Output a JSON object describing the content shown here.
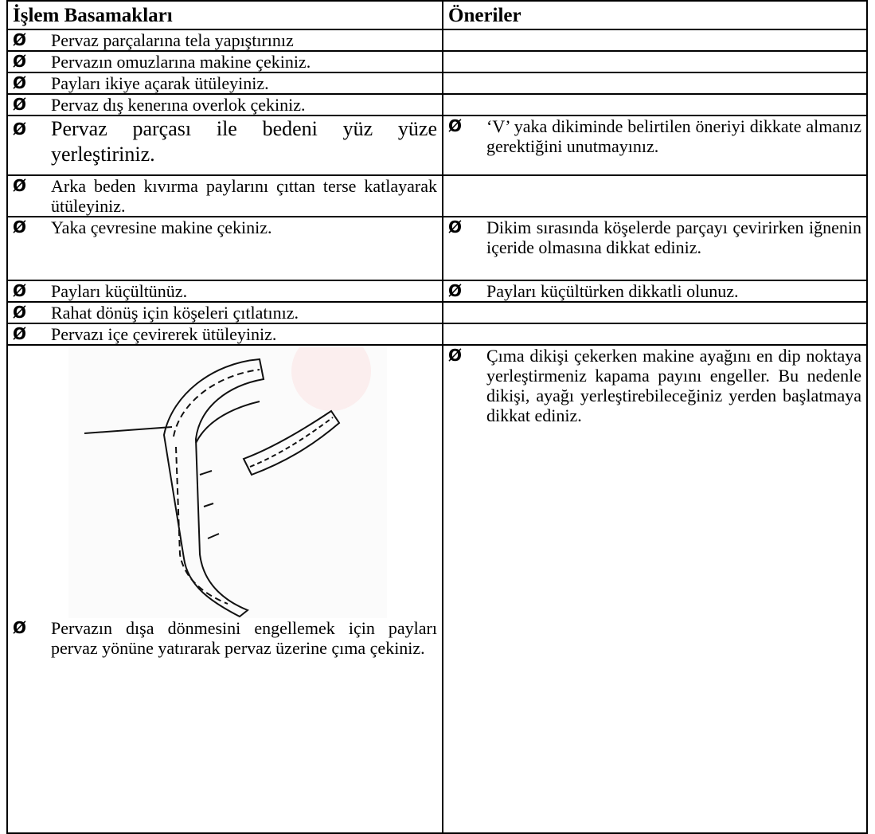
{
  "header": {
    "steps_title": "İşlem Basamakları",
    "notes_title": "Öneriler"
  },
  "bullet": "Ø",
  "rows": [
    {
      "step": "Pervaz parçalarına tela yapıştırınız"
    },
    {
      "step": "Pervazın omuzlarına makine çekiniz."
    },
    {
      "step": "Payları ikiye açarak ütüleyiniz."
    },
    {
      "step": "Pervaz dış kenerına overlok çekiniz."
    },
    {
      "step": "Pervaz parçası ile bedeni yüz yüze yerleştiriniz.",
      "note": "‘V’ yaka dikiminde belirtilen öneriyi dikkate almanız gerektiğini unutmayınız."
    },
    {
      "step": "Arka beden kıvırma paylarını çıttan terse katlayarak ütüleyiniz."
    },
    {
      "step": "Yaka çevresine makine çekiniz.",
      "note": "Dikim sırasında köşelerde parçayı çevirirken iğnenin içeride olmasına dikkat ediniz."
    },
    {
      "step": "Payları küçültünüz.",
      "note": "Payları küçültürken dikkatli olunuz."
    },
    {
      "step": "Rahat dönüş için köşeleri çıtlatınız."
    },
    {
      "step": "Pervazı içe çevirerek ütüleyiniz."
    },
    {
      "step": "Pervazın dışa dönmesini engellemek için payları pervaz yönüne yatırarak pervaz üzerine çıma çekiniz.",
      "note": "Çıma dikişi çekerken makine ayağını en dip noktaya yerleştirmeniz kapama payını engeller. Bu nedenle dikişi, ayağı yerleştirebileceğiniz yerden başlatmaya dikkat ediniz."
    }
  ]
}
